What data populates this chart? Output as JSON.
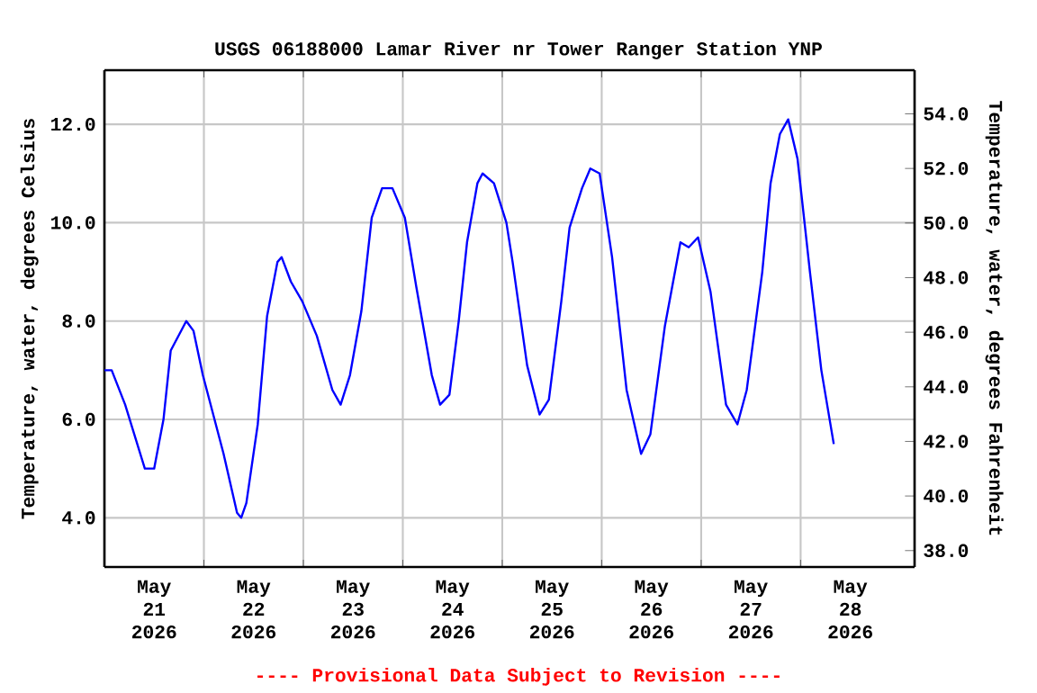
{
  "chart_data": {
    "type": "line",
    "title": "USGS 06188000 Lamar River nr Tower Ranger Station YNP",
    "ylabel": "Temperature, water, degrees Celsius",
    "y2label": "Temperature, water, degrees Fahrenheit",
    "annotations": [
      "---- Provisional Data Subject to Revision ----"
    ],
    "xlim": [
      "2026-05-21T00:00",
      "2026-05-29T03:30"
    ],
    "xticks": [
      {
        "value": "2026-05-21T12:00",
        "label": "May 21 2026"
      },
      {
        "value": "2026-05-22T12:00",
        "label": "May 22 2026"
      },
      {
        "value": "2026-05-23T12:00",
        "label": "May 23 2026"
      },
      {
        "value": "2026-05-24T12:00",
        "label": "May 24 2026"
      },
      {
        "value": "2026-05-25T12:00",
        "label": "May 25 2026"
      },
      {
        "value": "2026-05-26T12:00",
        "label": "May 26 2026"
      },
      {
        "value": "2026-05-27T12:00",
        "label": "May 27 2026"
      },
      {
        "value": "2026-05-28T12:00",
        "label": "May 28 2026"
      },
      {
        "value": "2026-05-22T00:00",
        "label": null
      },
      {
        "value": "2026-05-23T00:00",
        "label": null
      },
      {
        "value": "2026-05-24T00:00",
        "label": null
      },
      {
        "value": "2026-05-25T00:00",
        "label": null
      },
      {
        "value": "2026-05-26T00:00",
        "label": null
      },
      {
        "value": "2026-05-27T00:00",
        "label": null
      },
      {
        "value": "2026-05-28T00:00",
        "label": null
      }
    ],
    "ylim": [
      3.0,
      13.1
    ],
    "yticks": [
      {
        "value": 4,
        "label": "4.0"
      },
      {
        "value": 6,
        "label": "6.0"
      },
      {
        "value": 8,
        "label": "8.0"
      },
      {
        "value": 10,
        "label": "10.0"
      },
      {
        "value": 12,
        "label": "12.0"
      }
    ],
    "y2lim": [
      37.4,
      55.6
    ],
    "y2ticks": [
      {
        "value": 38,
        "label": "38.0"
      },
      {
        "value": 40,
        "label": "40.0"
      },
      {
        "value": 42,
        "label": "42.0"
      },
      {
        "value": 44,
        "label": "44.0"
      },
      {
        "value": 46,
        "label": "46.0"
      },
      {
        "value": 48,
        "label": "48.0"
      },
      {
        "value": 50,
        "label": "50.0"
      },
      {
        "value": 52,
        "label": "52.0"
      },
      {
        "value": 54,
        "label": "54.0"
      }
    ],
    "grid": true,
    "line_style": "solid",
    "series": [
      {
        "color": "#0000ff",
        "x": [
          "2026-05-21T00:00",
          "2026-05-21T01:45",
          "2026-05-21T05:00",
          "2026-05-21T09:45",
          "2026-05-21T12:00",
          "2026-05-21T14:15",
          "2026-05-21T16:00",
          "2026-05-21T19:45",
          "2026-05-21T21:30",
          "2026-05-21T23:45",
          "2026-05-22T04:45",
          "2026-05-22T08:00",
          "2026-05-22T09:00",
          "2026-05-22T10:15",
          "2026-05-22T13:00",
          "2026-05-22T15:15",
          "2026-05-22T17:45",
          "2026-05-22T18:45",
          "2026-05-22T21:00",
          "2026-05-22T23:45",
          "2026-05-23T03:15",
          "2026-05-23T07:00",
          "2026-05-23T09:00",
          "2026-05-23T11:15",
          "2026-05-23T14:00",
          "2026-05-23T16:30",
          "2026-05-23T19:00",
          "2026-05-23T21:30",
          "2026-05-24T00:30",
          "2026-05-24T03:15",
          "2026-05-24T07:00",
          "2026-05-24T09:00",
          "2026-05-24T11:15",
          "2026-05-24T13:30",
          "2026-05-24T15:30",
          "2026-05-24T18:00",
          "2026-05-24T19:15",
          "2026-05-24T22:00",
          "2026-05-25T01:00",
          "2026-05-25T02:30",
          "2026-05-25T06:00",
          "2026-05-25T09:00",
          "2026-05-25T11:15",
          "2026-05-25T14:15",
          "2026-05-25T16:15",
          "2026-05-25T19:15",
          "2026-05-25T21:15",
          "2026-05-25T23:30",
          "2026-05-26T02:30",
          "2026-05-26T06:00",
          "2026-05-26T09:30",
          "2026-05-26T11:45",
          "2026-05-26T15:15",
          "2026-05-26T19:00",
          "2026-05-26T21:00",
          "2026-05-26T23:15",
          "2026-05-27T02:15",
          "2026-05-27T06:00",
          "2026-05-27T08:45",
          "2026-05-27T11:00",
          "2026-05-27T14:45",
          "2026-05-27T16:45",
          "2026-05-27T19:00",
          "2026-05-27T21:00",
          "2026-05-27T23:15",
          "2026-05-28T02:15",
          "2026-05-28T05:00",
          "2026-05-28T08:00"
        ],
        "values": [
          7.0,
          7.0,
          6.3,
          5.0,
          5.0,
          6.0,
          7.4,
          8.0,
          7.8,
          6.9,
          5.3,
          4.1,
          4.0,
          4.3,
          5.9,
          8.1,
          9.2,
          9.3,
          8.8,
          8.4,
          7.7,
          6.6,
          6.3,
          6.9,
          8.2,
          10.1,
          10.7,
          10.7,
          10.1,
          8.7,
          6.9,
          6.3,
          6.5,
          8.0,
          9.6,
          10.8,
          11.0,
          10.8,
          10.0,
          9.2,
          7.1,
          6.1,
          6.4,
          8.4,
          9.9,
          10.7,
          11.1,
          11.0,
          9.3,
          6.6,
          5.3,
          5.7,
          7.9,
          9.6,
          9.5,
          9.7,
          8.6,
          6.3,
          5.9,
          6.6,
          9.0,
          10.8,
          11.8,
          12.1,
          11.3,
          9.0,
          7.0,
          5.5
        ]
      }
    ]
  }
}
